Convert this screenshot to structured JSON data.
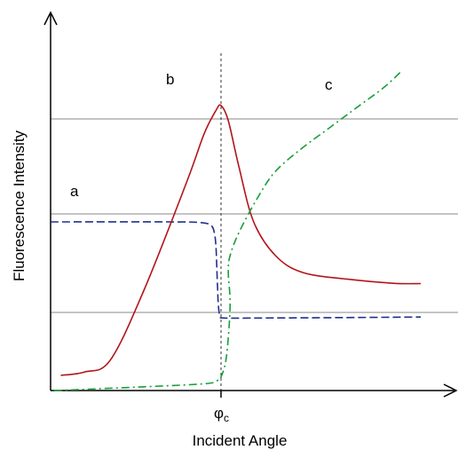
{
  "chart_data": {
    "type": "line",
    "xlabel": "Incident Angle",
    "ylabel": "Fluorescence Intensity",
    "xlim": [
      -1.0,
      1.1
    ],
    "ylim": [
      0,
      1.0
    ],
    "critical_marker": {
      "label": "φ",
      "subscript": "c",
      "x": 0
    },
    "grid": false,
    "reference_levels": [
      0.77,
      0.5,
      0.23
    ],
    "colors": {
      "a": "#1f2f8f",
      "b": "#b3141b",
      "c": "#1a9e3a",
      "axis": "#000000",
      "ref": "#7a7a7a"
    },
    "series": [
      {
        "name": "a",
        "style": "dashed",
        "points": [
          [
            -1.0,
            0.5
          ],
          [
            -0.3,
            0.5
          ],
          [
            -0.12,
            0.498
          ],
          [
            -0.06,
            0.49
          ],
          [
            -0.04,
            0.47
          ],
          [
            -0.03,
            0.43
          ],
          [
            -0.025,
            0.37
          ],
          [
            -0.02,
            0.3
          ],
          [
            -0.015,
            0.25
          ],
          [
            -0.005,
            0.22
          ],
          [
            0.02,
            0.215
          ],
          [
            0.2,
            0.215
          ],
          [
            0.6,
            0.216
          ],
          [
            1.1,
            0.218
          ]
        ]
      },
      {
        "name": "b",
        "style": "solid",
        "points": [
          [
            -0.94,
            0.045
          ],
          [
            -0.8,
            0.055
          ],
          [
            -0.65,
            0.09
          ],
          [
            -0.45,
            0.3
          ],
          [
            -0.2,
            0.62
          ],
          [
            -0.1,
            0.76
          ],
          [
            -0.03,
            0.83
          ],
          [
            0.0,
            0.845
          ],
          [
            0.04,
            0.8
          ],
          [
            0.1,
            0.66
          ],
          [
            0.18,
            0.5
          ],
          [
            0.3,
            0.4
          ],
          [
            0.45,
            0.35
          ],
          [
            0.7,
            0.33
          ],
          [
            0.95,
            0.318
          ],
          [
            1.1,
            0.317
          ]
        ]
      },
      {
        "name": "c",
        "style": "dashdot",
        "points": [
          [
            -0.98,
            0.0
          ],
          [
            -0.5,
            0.01
          ],
          [
            -0.1,
            0.02
          ],
          [
            -0.02,
            0.03
          ],
          [
            0.0,
            0.04
          ],
          [
            0.03,
            0.1
          ],
          [
            0.05,
            0.25
          ],
          [
            0.04,
            0.35
          ],
          [
            0.05,
            0.4
          ],
          [
            0.1,
            0.47
          ],
          [
            0.2,
            0.57
          ],
          [
            0.3,
            0.65
          ],
          [
            0.45,
            0.72
          ],
          [
            0.6,
            0.78
          ],
          [
            0.75,
            0.84
          ],
          [
            0.9,
            0.9
          ],
          [
            1.0,
            0.95
          ]
        ]
      }
    ],
    "series_labels": [
      {
        "name": "a",
        "text": "a"
      },
      {
        "name": "b",
        "text": "b"
      },
      {
        "name": "c",
        "text": "c"
      }
    ]
  }
}
